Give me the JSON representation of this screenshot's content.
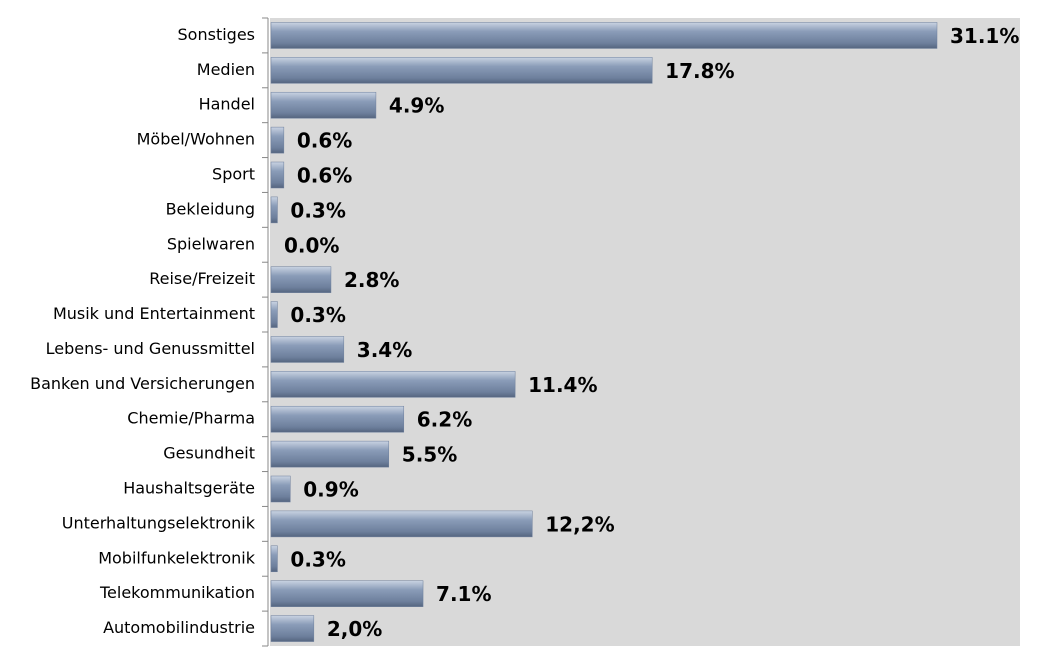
{
  "chart_data": {
    "type": "bar",
    "orientation": "horizontal",
    "categories": [
      "Sonstiges",
      "Medien",
      "Handel",
      "Möbel/Wohnen",
      "Sport",
      "Bekleidung",
      "Spielwaren",
      "Reise/Freizeit",
      "Musik und Entertainment",
      "Lebens- und Genussmittel",
      "Banken und Versicherungen",
      "Chemie/Pharma",
      "Gesundheit",
      "Haushaltsgeräte",
      "Unterhaltungselektronik",
      "Mobilfunkelektronik",
      "Telekommunikation",
      "Automobilindustrie"
    ],
    "values": [
      31.1,
      17.8,
      4.9,
      0.6,
      0.6,
      0.3,
      0.0,
      2.8,
      0.3,
      3.4,
      11.4,
      6.2,
      5.5,
      0.9,
      12.2,
      0.3,
      7.1,
      2.0
    ],
    "value_labels": [
      "31.1%",
      "17.8%",
      "4.9%",
      "0.6%",
      "0.6%",
      "0.3%",
      "0.0%",
      "2.8%",
      "0.3%",
      "3.4%",
      "11.4%",
      "6.2%",
      "5.5%",
      "0.9%",
      "12,2%",
      "0.3%",
      "7.1%",
      "2,0%"
    ],
    "color": "#8497b0"
  }
}
